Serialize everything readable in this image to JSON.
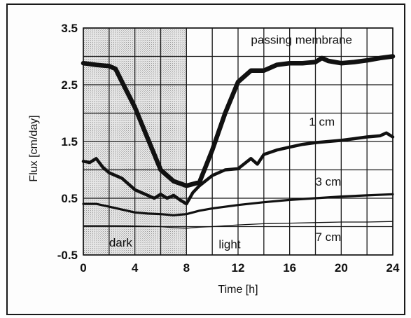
{
  "chart_data": {
    "type": "line",
    "title": "",
    "xlabel": "Time [h]",
    "ylabel": "Flux [cm/day]",
    "xlim": [
      0,
      24
    ],
    "ylim": [
      -0.5,
      3.5
    ],
    "x_ticks": [
      "0",
      "4",
      "8",
      "12",
      "16",
      "20",
      "24"
    ],
    "y_ticks": [
      "-0.5",
      "0.5",
      "1.5",
      "2.5",
      "3.5"
    ],
    "x_gridlines": [
      0,
      2,
      4,
      6,
      8,
      10,
      12,
      14,
      16,
      18,
      20,
      22,
      24
    ],
    "y_gridlines": [
      -0.5,
      0,
      0.5,
      1,
      1.5,
      2,
      2.5,
      3,
      3.5
    ],
    "grid": true,
    "legend": "none",
    "shaded_region": {
      "x": [
        0,
        8
      ],
      "label": "dark"
    },
    "background_label": "light",
    "series": [
      {
        "name": "passing membrane",
        "x": [
          0,
          1,
          2,
          2.5,
          3,
          4,
          5,
          6,
          7,
          8,
          9,
          10,
          11,
          12,
          13,
          14,
          15,
          16,
          17,
          18,
          18.5,
          19,
          20,
          21,
          22,
          23,
          24
        ],
        "y": [
          2.88,
          2.85,
          2.83,
          2.78,
          2.55,
          2.1,
          1.55,
          1.0,
          0.8,
          0.72,
          0.78,
          1.35,
          2.0,
          2.55,
          2.75,
          2.75,
          2.85,
          2.88,
          2.88,
          2.9,
          2.97,
          2.92,
          2.88,
          2.9,
          2.93,
          2.97,
          3.0
        ]
      },
      {
        "name": "1 cm",
        "x": [
          0,
          0.5,
          1,
          1.5,
          2,
          3,
          4,
          5,
          5.5,
          6,
          6.5,
          7,
          7.5,
          8,
          8.5,
          9,
          10,
          11,
          12,
          13,
          13.5,
          14,
          15,
          16,
          17,
          18,
          19,
          20,
          21,
          22,
          23,
          23.5,
          24
        ],
        "y": [
          1.15,
          1.13,
          1.2,
          1.05,
          0.95,
          0.85,
          0.65,
          0.55,
          0.5,
          0.57,
          0.5,
          0.55,
          0.47,
          0.4,
          0.6,
          0.72,
          0.9,
          1.0,
          1.02,
          1.2,
          1.1,
          1.27,
          1.35,
          1.4,
          1.45,
          1.48,
          1.5,
          1.52,
          1.55,
          1.58,
          1.6,
          1.65,
          1.58
        ]
      },
      {
        "name": "3 cm",
        "x": [
          0,
          1,
          2,
          3,
          4,
          5,
          6,
          7,
          8,
          9,
          10,
          12,
          14,
          16,
          18,
          20,
          22,
          24
        ],
        "y": [
          0.4,
          0.4,
          0.35,
          0.3,
          0.25,
          0.23,
          0.22,
          0.2,
          0.22,
          0.28,
          0.32,
          0.38,
          0.43,
          0.47,
          0.5,
          0.53,
          0.55,
          0.57
        ]
      },
      {
        "name": "7 cm",
        "x": [
          0,
          2,
          4,
          6,
          7,
          8,
          9,
          10,
          12,
          14,
          16,
          18,
          20,
          22,
          24
        ],
        "y": [
          0.02,
          0.02,
          0.01,
          0.0,
          -0.02,
          -0.03,
          -0.01,
          0.0,
          0.03,
          0.05,
          0.06,
          0.07,
          0.08,
          0.08,
          0.09
        ]
      }
    ],
    "annotations": [
      {
        "text": "passing membrane",
        "x": 13,
        "y": 3.22
      },
      {
        "text": "1 cm",
        "x": 17.5,
        "y": 1.78
      },
      {
        "text": "3 cm",
        "x": 18,
        "y": 0.72
      },
      {
        "text": "7 cm",
        "x": 18,
        "y": -0.25
      },
      {
        "text": "dark",
        "x": 2,
        "y": -0.35
      },
      {
        "text": "light",
        "x": 10.5,
        "y": -0.38
      }
    ],
    "colors": {
      "line": "#111111",
      "grid": "#1a1a1a",
      "shade": "#c8c8c8"
    }
  }
}
